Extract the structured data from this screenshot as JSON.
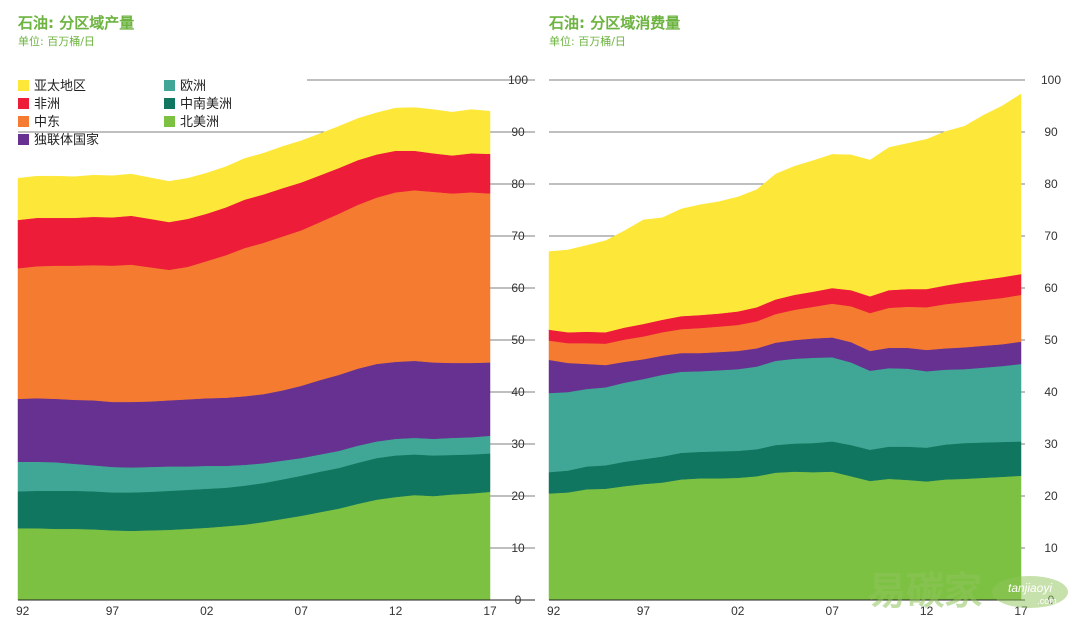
{
  "charts": [
    {
      "title": "石油: 分区域产量",
      "unit": "单位: 百万桶/日"
    },
    {
      "title": "石油: 分区域消费量",
      "unit": "单位: 百万桶/日"
    }
  ],
  "watermark": {
    "text": "易碳家",
    "sub": "tanjiaoyi",
    "sub2": ".com"
  },
  "chart_data": [
    {
      "type": "area",
      "stacked": true,
      "title": "石油: 分区域产量",
      "subtitle": "单位: 百万桶/日",
      "ylim": [
        0,
        100
      ],
      "yticks": [
        0,
        10,
        20,
        30,
        40,
        50,
        60,
        70,
        80,
        90,
        100
      ],
      "x": [
        1992,
        1993,
        1994,
        1995,
        1996,
        1997,
        1998,
        1999,
        2000,
        2001,
        2002,
        2003,
        2004,
        2005,
        2006,
        2007,
        2008,
        2009,
        2010,
        2011,
        2012,
        2013,
        2014,
        2015,
        2016,
        2017
      ],
      "xtick_labels": [
        {
          "x": 1992,
          "label": "92"
        },
        {
          "x": 1997,
          "label": "97"
        },
        {
          "x": 2002,
          "label": "02"
        },
        {
          "x": 2007,
          "label": "07"
        },
        {
          "x": 2012,
          "label": "12"
        },
        {
          "x": 2017,
          "label": "17"
        }
      ],
      "legend_position": "top-left",
      "grid": true,
      "series": [
        {
          "name": "北美洲",
          "color": "#7dc142",
          "values": [
            13.8,
            13.8,
            13.7,
            13.7,
            13.6,
            13.4,
            13.3,
            13.4,
            13.5,
            13.7,
            13.9,
            14.2,
            14.5,
            15.0,
            15.6,
            16.2,
            16.9,
            17.6,
            18.5,
            19.3,
            19.8,
            20.2,
            20.0,
            20.3,
            20.5,
            20.8
          ]
        },
        {
          "name": "中南美洲",
          "color": "#11765f",
          "values": [
            7.1,
            7.2,
            7.3,
            7.3,
            7.3,
            7.3,
            7.4,
            7.4,
            7.5,
            7.5,
            7.5,
            7.4,
            7.5,
            7.5,
            7.6,
            7.7,
            7.8,
            7.8,
            7.9,
            8.0,
            8.0,
            7.8,
            7.8,
            7.6,
            7.5,
            7.4
          ]
        },
        {
          "name": "欧洲",
          "color": "#40a695",
          "values": [
            5.7,
            5.6,
            5.5,
            5.2,
            5.0,
            4.9,
            4.8,
            4.8,
            4.7,
            4.5,
            4.4,
            4.2,
            4.0,
            3.8,
            3.6,
            3.4,
            3.3,
            3.3,
            3.3,
            3.2,
            3.2,
            3.2,
            3.2,
            3.3,
            3.3,
            3.4
          ]
        },
        {
          "name": "独联体国家",
          "color": "#663191",
          "values": [
            12.1,
            12.2,
            12.2,
            12.3,
            12.5,
            12.5,
            12.6,
            12.6,
            12.7,
            12.9,
            13.0,
            13.1,
            13.2,
            13.3,
            13.5,
            13.9,
            14.3,
            14.6,
            14.8,
            14.9,
            14.8,
            14.8,
            14.7,
            14.4,
            14.3,
            14.1
          ]
        },
        {
          "name": "中东",
          "color": "#f47b30",
          "values": [
            25.1,
            25.4,
            25.6,
            25.8,
            26.0,
            26.2,
            26.4,
            25.8,
            25.1,
            25.5,
            26.4,
            27.4,
            28.5,
            29.1,
            29.6,
            29.9,
            30.4,
            31.0,
            31.5,
            32.0,
            32.6,
            32.8,
            32.8,
            32.6,
            32.8,
            32.5
          ]
        },
        {
          "name": "非洲",
          "color": "#ed1c39",
          "values": [
            9.3,
            9.3,
            9.2,
            9.2,
            9.3,
            9.3,
            9.4,
            9.3,
            9.2,
            9.2,
            9.1,
            9.2,
            9.3,
            9.3,
            9.3,
            9.2,
            9.0,
            8.8,
            8.6,
            8.3,
            8.0,
            7.6,
            7.4,
            7.3,
            7.5,
            7.6
          ]
        },
        {
          "name": "亚太地区",
          "color": "#fde83a",
          "values": [
            8.0,
            8.0,
            8.0,
            7.9,
            8.0,
            8.0,
            8.0,
            7.9,
            7.8,
            7.8,
            7.8,
            7.8,
            7.9,
            7.9,
            8.0,
            8.0,
            8.0,
            8.0,
            8.0,
            8.0,
            8.2,
            8.3,
            8.4,
            8.3,
            8.4,
            8.2
          ]
        }
      ]
    },
    {
      "type": "area",
      "stacked": true,
      "title": "石油: 分区域消费量",
      "subtitle": "单位: 百万桶/日",
      "ylim": [
        0,
        100
      ],
      "yticks": [
        0,
        10,
        20,
        30,
        40,
        50,
        60,
        70,
        80,
        90,
        100
      ],
      "x": [
        1992,
        1993,
        1994,
        1995,
        1996,
        1997,
        1998,
        1999,
        2000,
        2001,
        2002,
        2003,
        2004,
        2005,
        2006,
        2007,
        2008,
        2009,
        2010,
        2011,
        2012,
        2013,
        2014,
        2015,
        2016,
        2017
      ],
      "xtick_labels": [
        {
          "x": 1992,
          "label": "92"
        },
        {
          "x": 1997,
          "label": "97"
        },
        {
          "x": 2002,
          "label": "02"
        },
        {
          "x": 2007,
          "label": "07"
        },
        {
          "x": 2012,
          "label": "12"
        },
        {
          "x": 2017,
          "label": "17"
        }
      ],
      "grid": true,
      "series": [
        {
          "name": "北美洲",
          "color": "#7dc142",
          "values": [
            20.5,
            20.7,
            21.3,
            21.4,
            21.9,
            22.3,
            22.6,
            23.2,
            23.4,
            23.4,
            23.5,
            23.8,
            24.5,
            24.7,
            24.6,
            24.7,
            23.8,
            22.9,
            23.3,
            23.1,
            22.8,
            23.2,
            23.3,
            23.5,
            23.7,
            23.9
          ]
        },
        {
          "name": "中南美洲",
          "color": "#11765f",
          "values": [
            4.1,
            4.2,
            4.4,
            4.5,
            4.7,
            4.8,
            5.0,
            5.1,
            5.1,
            5.2,
            5.2,
            5.2,
            5.3,
            5.4,
            5.6,
            5.8,
            6.0,
            6.0,
            6.2,
            6.4,
            6.5,
            6.7,
            6.9,
            6.8,
            6.7,
            6.6
          ]
        },
        {
          "name": "欧洲",
          "color": "#40a695",
          "values": [
            15.2,
            15.1,
            14.9,
            15.0,
            15.2,
            15.4,
            15.7,
            15.6,
            15.5,
            15.6,
            15.7,
            15.9,
            16.2,
            16.3,
            16.4,
            16.2,
            15.9,
            15.2,
            15.1,
            15.0,
            14.7,
            14.4,
            14.2,
            14.4,
            14.6,
            14.9
          ]
        },
        {
          "name": "独联体国家",
          "color": "#663191",
          "values": [
            6.4,
            5.6,
            4.8,
            4.3,
            4.0,
            3.8,
            3.7,
            3.6,
            3.5,
            3.5,
            3.5,
            3.5,
            3.5,
            3.6,
            3.7,
            3.8,
            3.9,
            3.8,
            3.9,
            4.0,
            4.1,
            4.1,
            4.2,
            4.2,
            4.2,
            4.3
          ]
        },
        {
          "name": "中东",
          "color": "#f47b30",
          "values": [
            3.7,
            3.8,
            4.0,
            4.1,
            4.3,
            4.4,
            4.5,
            4.6,
            4.8,
            4.9,
            5.0,
            5.2,
            5.5,
            5.8,
            6.1,
            6.5,
            6.9,
            7.3,
            7.7,
            7.9,
            8.2,
            8.5,
            8.7,
            8.8,
            8.9,
            9.0
          ]
        },
        {
          "name": "非洲",
          "color": "#ed1c39",
          "values": [
            2.1,
            2.1,
            2.2,
            2.2,
            2.3,
            2.4,
            2.4,
            2.5,
            2.5,
            2.5,
            2.6,
            2.7,
            2.8,
            2.9,
            2.9,
            3.0,
            3.1,
            3.2,
            3.4,
            3.4,
            3.5,
            3.6,
            3.8,
            3.9,
            4.0,
            4.0
          ]
        },
        {
          "name": "亚太地区",
          "color": "#fde83a",
          "values": [
            15.0,
            15.8,
            16.6,
            17.6,
            18.6,
            20.0,
            19.6,
            20.6,
            21.2,
            21.5,
            22.0,
            22.6,
            24.1,
            24.7,
            25.2,
            25.7,
            26.0,
            26.2,
            27.4,
            28.0,
            28.8,
            29.6,
            30.0,
            31.6,
            32.9,
            34.6
          ]
        }
      ]
    }
  ]
}
